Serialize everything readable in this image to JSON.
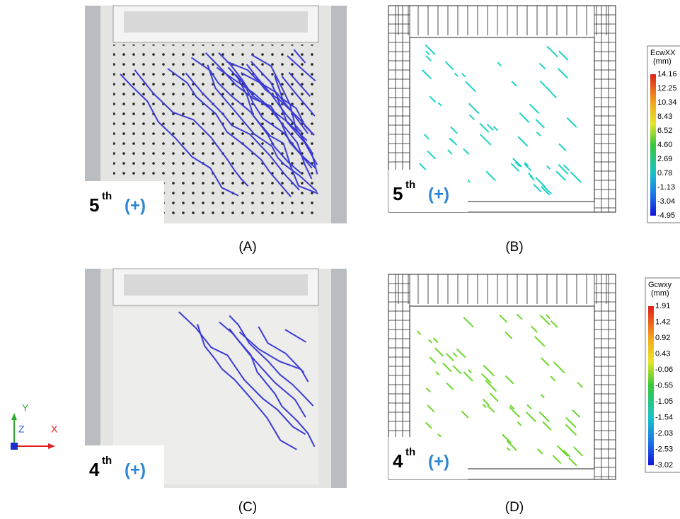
{
  "panels": [
    {
      "label": "(A)",
      "tag": {
        "number": "5",
        "suffix": "th",
        "sign": "(+)"
      }
    },
    {
      "label": "(B)",
      "tag": {
        "number": "5",
        "suffix": "th",
        "sign": "(+)"
      },
      "legend": {
        "title": "EcwXX",
        "unit": "(mm)",
        "values": [
          "14.16",
          "12.25",
          "10.34",
          "8.43",
          "6.52",
          "4.60",
          "2.69",
          "0.78",
          "-1.13",
          "-3.04",
          "-4.95"
        ]
      }
    },
    {
      "label": "(C)",
      "tag": {
        "number": "4",
        "suffix": "th",
        "sign": "(+)"
      }
    },
    {
      "label": "(D)",
      "tag": {
        "number": "4",
        "suffix": "th",
        "sign": "(+)"
      },
      "legend": {
        "title": "Gcwxy",
        "unit": "(mm)",
        "values": [
          "1.91",
          "1.42",
          "0.92",
          "0.43",
          "-0.06",
          "-0.55",
          "-1.05",
          "-1.54",
          "-2.03",
          "-2.53",
          "-3.02"
        ]
      }
    }
  ],
  "axes": {
    "x": "X",
    "y": "Y",
    "z": "Z"
  }
}
